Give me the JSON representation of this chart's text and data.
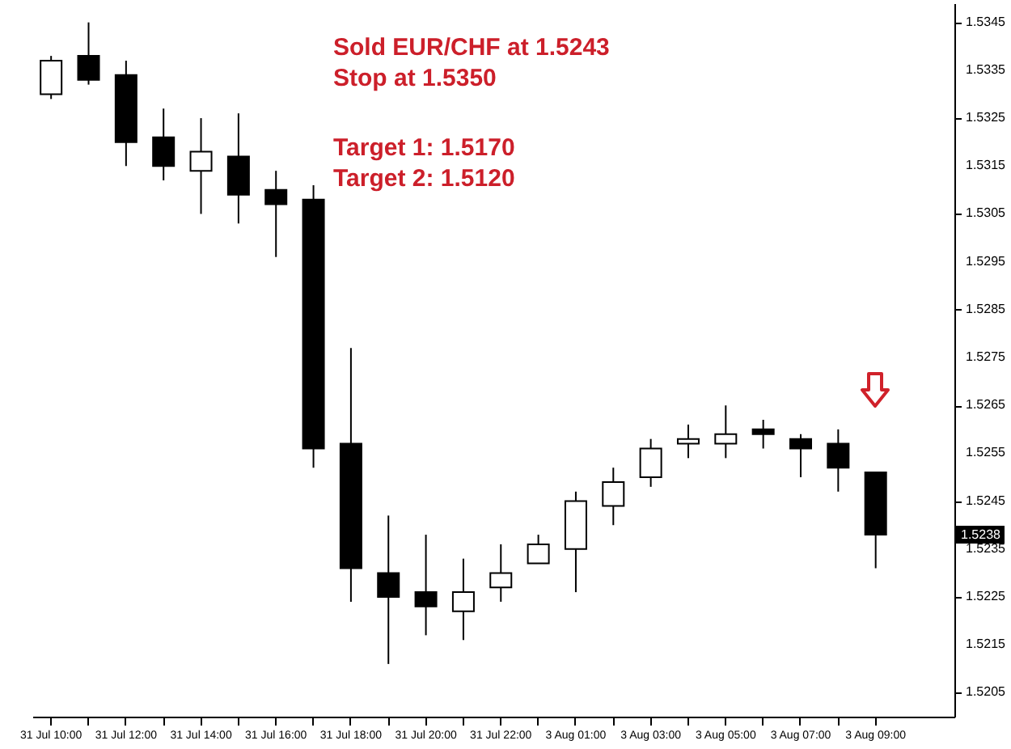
{
  "chart_data": {
    "type": "candlestick",
    "categories": [
      "31 Jul 10:00",
      null,
      "31 Jul 12:00",
      null,
      "31 Jul 14:00",
      null,
      "31 Jul 16:00",
      null,
      "31 Jul 18:00",
      null,
      "31 Jul 20:00",
      null,
      "31 Jul 22:00",
      null,
      "3 Aug 01:00",
      null,
      "3 Aug 03:00",
      null,
      "3 Aug 05:00",
      null,
      "3 Aug 07:00",
      null,
      "3 Aug 09:00"
    ],
    "ohlc": [
      [
        1.533,
        1.5338,
        1.5329,
        1.5337
      ],
      [
        1.5338,
        1.5345,
        1.5332,
        1.5333
      ],
      [
        1.5334,
        1.5337,
        1.5315,
        1.532
      ],
      [
        1.5321,
        1.5327,
        1.5312,
        1.5315
      ],
      [
        1.5314,
        1.5325,
        1.5305,
        1.5318
      ],
      [
        1.5317,
        1.5326,
        1.5303,
        1.5309
      ],
      [
        1.531,
        1.5314,
        1.5296,
        1.5307
      ],
      [
        1.5308,
        1.5311,
        1.5252,
        1.5256
      ],
      [
        1.5257,
        1.5277,
        1.5224,
        1.5231
      ],
      [
        1.523,
        1.5242,
        1.5211,
        1.5225
      ],
      [
        1.5226,
        1.5238,
        1.5217,
        1.5223
      ],
      [
        1.5222,
        1.5233,
        1.5216,
        1.5226
      ],
      [
        1.5227,
        1.5236,
        1.5224,
        1.523
      ],
      [
        1.5232,
        1.5238,
        1.5232,
        1.5236
      ],
      [
        1.5235,
        1.5247,
        1.5226,
        1.5245
      ],
      [
        1.5244,
        1.5252,
        1.524,
        1.5249
      ],
      [
        1.525,
        1.5258,
        1.5248,
        1.5256
      ],
      [
        1.5257,
        1.5261,
        1.5254,
        1.5258
      ],
      [
        1.5257,
        1.5265,
        1.5254,
        1.5259
      ],
      [
        1.526,
        1.5262,
        1.5256,
        1.5259
      ],
      [
        1.5258,
        1.5259,
        1.525,
        1.5256
      ],
      [
        1.5257,
        1.526,
        1.5247,
        1.5252
      ],
      [
        1.5251,
        1.5251,
        1.5231,
        1.5238
      ]
    ],
    "ylim": [
      1.52,
      1.5349
    ],
    "yticks": [
      1.5205,
      1.5215,
      1.5225,
      1.5235,
      1.5245,
      1.5255,
      1.5265,
      1.5275,
      1.5285,
      1.5295,
      1.5305,
      1.5315,
      1.5325,
      1.5335,
      1.5345
    ],
    "annotations": [
      "Sold EUR/CHF at 1.5243",
      "Stop at 1.5350",
      "Target 1: 1.5170",
      "Target 2: 1.5120",
      "1.5238"
    ]
  }
}
